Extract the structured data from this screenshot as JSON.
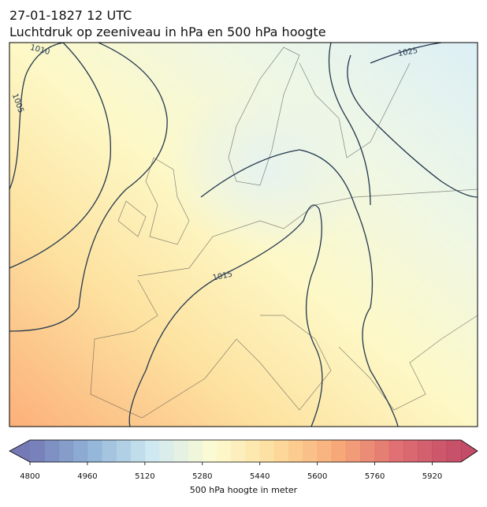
{
  "map": {
    "title": "27-01-1827 12 UTC",
    "subtitle": "Luchtdruk op zeeniveau in hPa en 500 hPa hoogte",
    "contour_labels": [
      "1010",
      "1005",
      "1025",
      "1015"
    ],
    "colorbar": {
      "label": "500 hPa hoogte in meter",
      "xlim": [
        4800,
        6000
      ],
      "xticks": [
        4800,
        4960,
        5120,
        5280,
        5440,
        5600,
        5760,
        5920
      ],
      "colors": [
        "#5d63aa",
        "#7fa9d1",
        "#c8e5ef",
        "#fdfbc9",
        "#fdd58a",
        "#f59a62",
        "#d9545a",
        "#b82d4e"
      ]
    }
  }
}
